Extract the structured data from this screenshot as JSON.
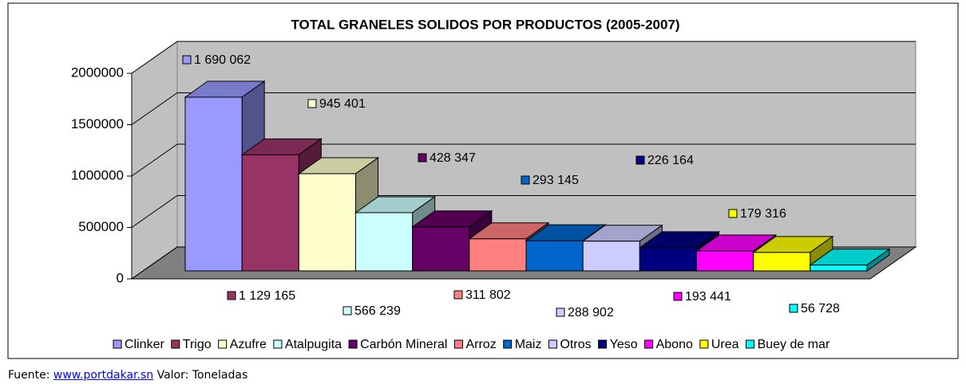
{
  "chart_data": {
    "type": "bar3d",
    "title": "TOTAL GRANELES SOLIDOS POR PRODUCTOS (2005-2007)",
    "categories": [
      "Clinker",
      "Trigo",
      "Azufre",
      "Atalpugita",
      "Carbón Mineral",
      "Arroz",
      "Maiz",
      "Otros",
      "Yeso",
      "Abono",
      "Urea",
      "Buey de mar"
    ],
    "series": [
      {
        "values": [
          1690062,
          1129165,
          945401,
          566239,
          428347,
          311802,
          293145,
          288902,
          226164,
          193441,
          179316,
          56728
        ],
        "value_labels": [
          "1 690 062",
          "1 129 165",
          "945 401",
          "566 239",
          "428 347",
          "311 802",
          "293 145",
          "288 902",
          "226 164",
          "193 441",
          "179 316",
          "56 728"
        ],
        "colors": [
          "#9999ff",
          "#993366",
          "#ffffcc",
          "#ccffff",
          "#660066",
          "#ff8080",
          "#0066cc",
          "#ccccff",
          "#000080",
          "#ff00ff",
          "#ffff00",
          "#00ffff"
        ]
      }
    ],
    "ylim": [
      0,
      2000000
    ],
    "yticks": [
      0,
      500000,
      1000000,
      1500000,
      2000000
    ],
    "grid": true,
    "legend": "bottom"
  },
  "footer": {
    "source_label": "Fuente:",
    "link": "www.portdakar.sn",
    "note": "Valor: Toneladas"
  }
}
